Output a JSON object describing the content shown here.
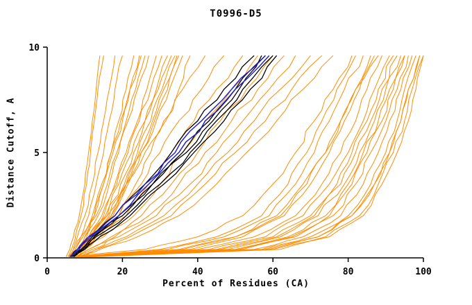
{
  "chart_data": {
    "type": "line",
    "title": "T0996-D5",
    "xlabel": "Percent of Residues (CA)",
    "ylabel": "Distance Cutoff, A",
    "xlim": [
      0,
      100
    ],
    "ylim": [
      0,
      10
    ],
    "x_ticks": [
      0,
      20,
      40,
      60,
      80,
      100
    ],
    "y_ticks": [
      0,
      5,
      10
    ],
    "grid": false,
    "legend": "none",
    "background": "#ffffff",
    "axis_color": "#000000",
    "y_anchors": [
      0.05,
      0.4,
      1,
      2,
      3.5,
      5,
      6.5,
      8,
      9.6
    ],
    "series_groups": [
      {
        "name": "server-model",
        "color": "#FF8C00",
        "stroke_width": 1,
        "curves": [
          [
            5.5,
            6.5,
            7.5,
            9,
            10.5,
            11.5,
            12.5,
            13.5,
            15
          ],
          [
            6,
            7,
            8,
            10,
            12,
            13.5,
            15,
            16.5,
            18
          ],
          [
            6,
            7.5,
            9,
            11,
            13,
            15,
            16.5,
            18,
            20
          ],
          [
            6.5,
            8,
            10,
            12.5,
            15,
            17,
            19,
            21,
            23
          ],
          [
            5.5,
            7,
            9,
            12,
            14.5,
            17,
            19.5,
            22,
            25
          ],
          [
            6,
            8,
            10.5,
            13.5,
            16.5,
            19,
            21.5,
            24,
            27
          ],
          [
            6.5,
            8.5,
            11,
            14.5,
            18,
            21,
            24,
            26.5,
            29
          ],
          [
            7,
            9,
            12,
            16,
            19.5,
            23,
            26,
            29,
            32
          ],
          [
            6,
            8.5,
            11.5,
            15.5,
            19,
            22.5,
            26,
            29.5,
            33
          ],
          [
            7,
            9.5,
            13,
            17.5,
            21.5,
            25,
            28.5,
            32,
            35
          ],
          [
            6.5,
            9,
            12.5,
            17,
            21,
            25,
            29,
            32.5,
            36
          ],
          [
            7.5,
            10,
            14,
            19,
            23.5,
            27.5,
            31.5,
            35,
            38
          ],
          [
            5,
            6,
            7,
            8.5,
            10,
            11,
            12,
            13,
            14
          ],
          [
            6,
            7.5,
            9.5,
            12.5,
            15,
            17.5,
            20,
            22,
            24.5
          ],
          [
            7,
            9,
            12,
            16.5,
            20.5,
            24,
            27.5,
            30.5,
            34
          ],
          [
            6,
            8,
            10,
            13,
            16,
            18.5,
            21,
            23.5,
            26
          ],
          [
            7,
            9.5,
            12.5,
            17,
            21,
            24.5,
            28,
            31,
            34.5
          ],
          [
            6.5,
            8.5,
            11,
            15,
            18.5,
            21.5,
            24.5,
            27.5,
            30.5
          ],
          [
            6,
            8,
            11,
            16,
            21,
            26,
            31,
            36,
            42
          ],
          [
            7,
            9,
            13,
            19,
            25,
            30,
            35,
            41,
            47
          ],
          [
            6.5,
            9,
            14,
            21,
            27,
            33,
            39,
            45,
            52
          ],
          [
            7,
            10,
            15,
            23,
            30,
            36,
            42,
            49,
            56
          ],
          [
            8,
            11,
            17,
            25,
            33,
            40,
            46,
            53,
            60
          ],
          [
            7.5,
            11,
            18,
            27,
            35,
            42,
            49,
            56,
            63
          ],
          [
            8,
            12,
            19,
            29,
            38,
            45,
            52,
            59,
            66
          ],
          [
            9,
            13,
            21,
            31,
            40,
            48,
            55,
            62,
            70
          ],
          [
            8.5,
            13,
            22,
            33,
            42,
            50,
            58,
            65,
            73
          ],
          [
            9,
            14,
            24,
            35,
            45,
            53,
            61,
            68,
            76
          ],
          [
            7,
            30,
            45,
            57,
            64,
            69,
            73,
            77,
            82
          ],
          [
            8,
            35,
            50,
            62,
            69,
            74,
            78,
            82,
            86
          ],
          [
            9,
            40,
            55,
            66,
            73,
            78,
            82,
            85,
            89
          ],
          [
            10,
            45,
            60,
            70,
            77,
            81,
            85,
            88,
            92
          ],
          [
            10,
            50,
            64,
            74,
            80,
            84,
            88,
            91,
            95
          ],
          [
            11,
            55,
            68,
            78,
            84,
            88,
            91,
            94,
            97
          ],
          [
            11,
            58,
            72,
            81,
            87,
            91,
            94,
            96,
            99
          ],
          [
            12,
            62,
            75,
            84,
            89,
            93,
            96,
            98,
            100
          ],
          [
            8,
            38,
            52,
            63,
            70,
            75,
            79,
            83,
            87
          ],
          [
            9,
            43,
            58,
            68,
            75,
            80,
            84,
            87,
            91
          ],
          [
            10,
            48,
            62,
            72,
            79,
            83,
            87,
            90,
            94
          ],
          [
            10,
            52,
            66,
            76,
            82,
            86,
            90,
            93,
            96
          ],
          [
            11,
            57,
            70,
            80,
            86,
            90,
            93,
            95,
            98
          ],
          [
            7,
            32,
            47,
            59,
            66,
            71,
            75,
            79,
            84
          ],
          [
            12,
            60,
            74,
            83,
            88,
            92,
            95,
            97,
            100
          ],
          [
            6,
            26,
            40,
            52,
            60,
            66,
            71,
            76,
            81
          ],
          [
            8,
            36,
            50,
            61,
            68,
            74,
            78,
            82,
            88
          ],
          [
            10,
            46,
            61,
            71,
            78,
            82,
            86,
            89,
            93
          ],
          [
            10,
            51,
            65,
            75,
            81,
            85,
            89,
            92,
            95
          ],
          [
            11,
            59,
            72,
            81,
            87,
            91,
            94,
            96,
            99
          ]
        ]
      },
      {
        "name": "reference-model",
        "color": "#000000",
        "stroke_width": 1.3,
        "curves": [
          [
            6,
            8,
            11,
            18,
            26,
            33,
            40,
            47,
            55
          ],
          [
            6.5,
            9,
            12,
            20,
            28,
            36,
            43,
            50,
            58
          ],
          [
            7,
            9.5,
            13,
            21,
            30,
            38,
            45,
            52,
            60
          ],
          [
            7,
            10,
            14,
            22,
            31,
            39,
            47,
            54,
            61
          ],
          [
            6.5,
            9,
            12.5,
            19,
            28,
            37,
            44,
            51,
            57
          ]
        ]
      },
      {
        "name": "highlighted-model",
        "color": "#2222CC",
        "stroke_width": 1.5,
        "curves": [
          [
            6,
            8.5,
            11.5,
            19,
            27,
            35,
            42,
            50,
            59
          ],
          [
            6,
            8,
            11,
            18,
            26,
            34,
            41,
            49,
            58
          ]
        ]
      }
    ]
  }
}
